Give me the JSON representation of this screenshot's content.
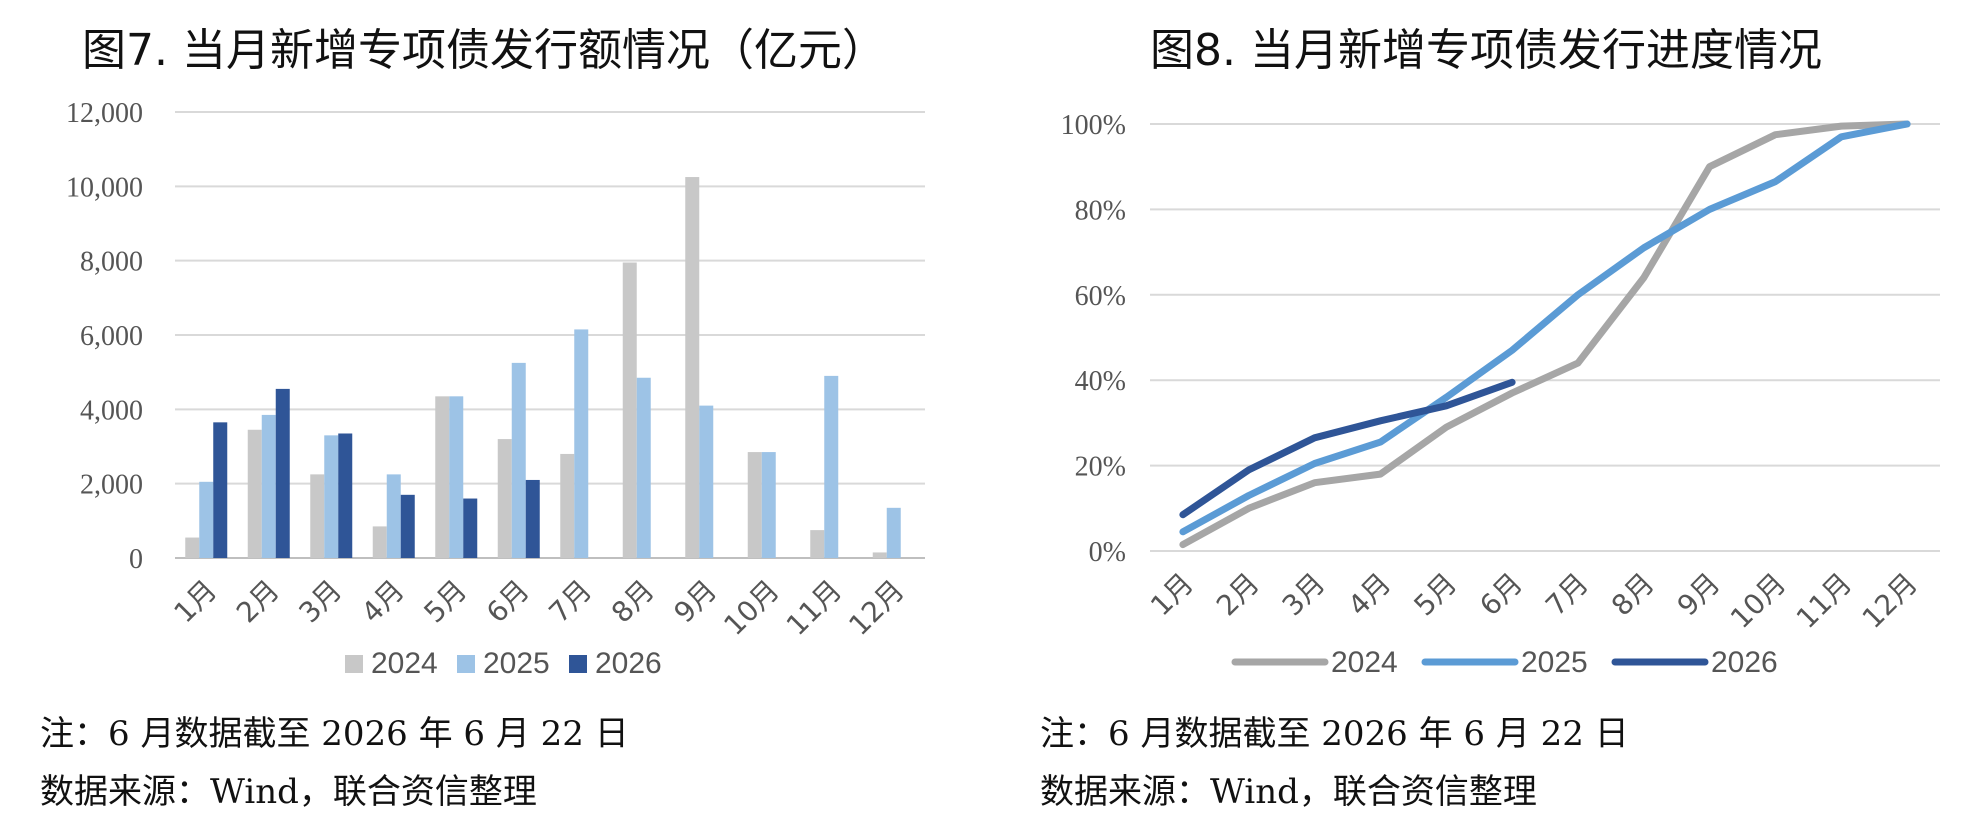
{
  "chart_data": [
    {
      "type": "bar",
      "title": "图7. 当月新增专项债发行额情况（亿元）",
      "categories": [
        "1月",
        "2月",
        "3月",
        "4月",
        "5月",
        "6月",
        "7月",
        "8月",
        "9月",
        "10月",
        "11月",
        "12月"
      ],
      "ylim": [
        0,
        12000
      ],
      "yticks": [
        "0",
        "2,000",
        "4,000",
        "6,000",
        "8,000",
        "10,000",
        "12,000"
      ],
      "grid": true,
      "legend_position": "bottom",
      "series": [
        {
          "name": "2024",
          "color": "#c8c8c8",
          "values": [
            550,
            3450,
            2250,
            850,
            4350,
            3200,
            2800,
            7950,
            10250,
            2850,
            750,
            150
          ]
        },
        {
          "name": "2025",
          "color": "#9dc3e6",
          "values": [
            2050,
            3850,
            3300,
            2250,
            4350,
            5250,
            6150,
            4850,
            4100,
            2850,
            4900,
            1350
          ]
        },
        {
          "name": "2026",
          "color": "#2f5597",
          "values": [
            3650,
            4550,
            3350,
            1700,
            1600,
            2100,
            null,
            null,
            null,
            null,
            null,
            null
          ]
        }
      ],
      "note": "注：6 月数据截至 2026 年 6 月 22 日",
      "source": "数据来源：Wind，联合资信整理"
    },
    {
      "type": "line",
      "title": "图8. 当月新增专项债发行进度情况",
      "categories": [
        "1月",
        "2月",
        "3月",
        "4月",
        "5月",
        "6月",
        "7月",
        "8月",
        "9月",
        "10月",
        "11月",
        "12月"
      ],
      "ylim": [
        0,
        100
      ],
      "yticks": [
        "0%",
        "20%",
        "40%",
        "60%",
        "80%",
        "100%"
      ],
      "grid": true,
      "legend_position": "bottom",
      "series": [
        {
          "name": "2024",
          "color": "#a6a6a6",
          "values": [
            1.5,
            10,
            16,
            18,
            29,
            37,
            44,
            64,
            90,
            97.5,
            99.5,
            100
          ]
        },
        {
          "name": "2025",
          "color": "#5b9bd5",
          "values": [
            4.5,
            13,
            20.5,
            25.5,
            36,
            47,
            60,
            71,
            80,
            86.5,
            97,
            100
          ]
        },
        {
          "name": "2026",
          "color": "#2f5597",
          "values": [
            8.5,
            19,
            26.5,
            30.5,
            34,
            39.5,
            null,
            null,
            null,
            null,
            null,
            null
          ]
        }
      ],
      "note": "注：6 月数据截至 2026 年 6 月 22 日",
      "source": "数据来源：Wind，联合资信整理"
    }
  ]
}
